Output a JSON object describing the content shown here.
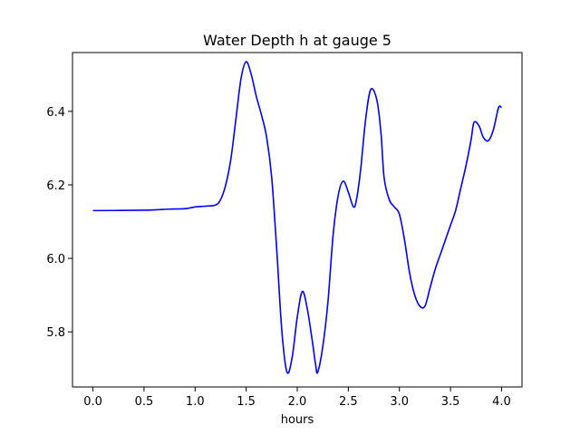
{
  "chart_data": {
    "type": "line",
    "title": "Water Depth h at gauge 5",
    "xlabel": "hours",
    "ylabel": "",
    "xlim": [
      -0.2,
      4.2
    ],
    "ylim": [
      5.65,
      6.56
    ],
    "xticks": [
      0.0,
      0.5,
      1.0,
      1.5,
      2.0,
      2.5,
      3.0,
      3.5,
      4.0
    ],
    "xtick_labels": [
      "0.0",
      "0.5",
      "1.0",
      "1.5",
      "2.0",
      "2.5",
      "3.0",
      "3.5",
      "4.0"
    ],
    "yticks": [
      5.8,
      6.0,
      6.2,
      6.4
    ],
    "ytick_labels": [
      "5.8",
      "6.0",
      "6.2",
      "6.4"
    ],
    "grid": false,
    "series": [
      {
        "color": "#0000ff",
        "x": [
          0.0,
          0.5,
          0.75,
          0.9,
          1.0,
          1.1,
          1.2,
          1.25,
          1.3,
          1.35,
          1.4,
          1.45,
          1.5,
          1.55,
          1.6,
          1.65,
          1.7,
          1.75,
          1.8,
          1.85,
          1.9,
          1.95,
          2.0,
          2.05,
          2.1,
          2.15,
          2.18,
          2.2,
          2.25,
          2.3,
          2.35,
          2.4,
          2.45,
          2.5,
          2.55,
          2.58,
          2.62,
          2.67,
          2.72,
          2.78,
          2.82,
          2.85,
          2.9,
          2.95,
          3.0,
          3.05,
          3.1,
          3.15,
          3.2,
          3.25,
          3.3,
          3.35,
          3.4,
          3.45,
          3.5,
          3.55,
          3.6,
          3.65,
          3.7,
          3.73,
          3.78,
          3.82,
          3.87,
          3.92,
          3.97,
          4.0
        ],
        "y": [
          6.13,
          6.131,
          6.134,
          6.135,
          6.14,
          6.142,
          6.145,
          6.16,
          6.2,
          6.27,
          6.38,
          6.49,
          6.535,
          6.5,
          6.44,
          6.39,
          6.33,
          6.22,
          6.02,
          5.8,
          5.69,
          5.73,
          5.84,
          5.91,
          5.86,
          5.77,
          5.71,
          5.69,
          5.76,
          5.88,
          6.06,
          6.17,
          6.21,
          6.18,
          6.14,
          6.16,
          6.24,
          6.38,
          6.46,
          6.43,
          6.34,
          6.22,
          6.16,
          6.14,
          6.12,
          6.05,
          5.96,
          5.9,
          5.87,
          5.87,
          5.92,
          5.97,
          6.01,
          6.05,
          6.09,
          6.13,
          6.19,
          6.25,
          6.32,
          6.37,
          6.36,
          6.33,
          6.32,
          6.35,
          6.41,
          6.41
        ]
      }
    ]
  }
}
